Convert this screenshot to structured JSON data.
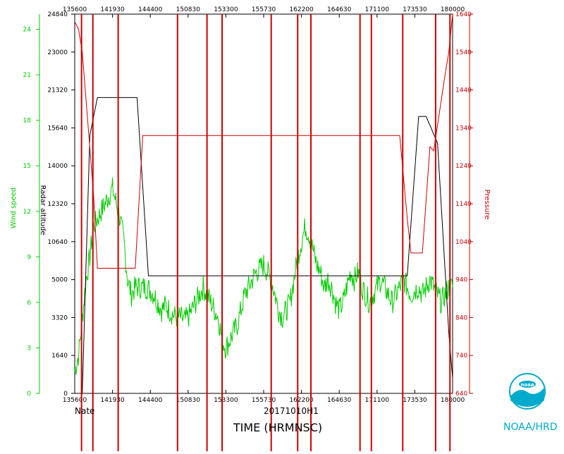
{
  "chart_data": {
    "type": "line",
    "storm_name": "Nate",
    "flight_id": "20171010H1",
    "xlabel": "TIME (HRMNSC)",
    "x_ticks_bottom": [
      "135600",
      "141930",
      "144400",
      "150830",
      "153300",
      "155730",
      "162200",
      "164630",
      "171100",
      "173530",
      "180000"
    ],
    "x_ticks_top": [
      "135600",
      "141930",
      "144400",
      "150830",
      "153300",
      "155730",
      "162200",
      "164630",
      "171100",
      "173530",
      "180000"
    ],
    "axes": {
      "wind": {
        "label": "Wind speed",
        "color": "#00cc00",
        "ticks": [
          "0",
          "3",
          "6",
          "9",
          "12",
          "15",
          "18",
          "21",
          "24"
        ],
        "range": [
          0,
          25
        ]
      },
      "altitude": {
        "label": "Radar altitude",
        "color": "#000000",
        "ticks": [
          "0",
          "1640",
          "3320",
          "5000",
          "10640",
          "12320",
          "14000",
          "15640",
          "21320",
          "23000",
          "24840"
        ]
      },
      "pressure": {
        "label": "Pressure",
        "color": "#cc0000",
        "ticks": [
          "640",
          "740",
          "840",
          "940",
          "1040",
          "1140",
          "1240",
          "1340",
          "1440",
          "1540",
          "1640"
        ]
      }
    },
    "series": [
      {
        "name": "Wind speed",
        "color": "#00cc00",
        "x": [
          0.0,
          0.01,
          0.02,
          0.03,
          0.04,
          0.05,
          0.06,
          0.07,
          0.08,
          0.09,
          0.1,
          0.11,
          0.12,
          0.13,
          0.14,
          0.15,
          0.16,
          0.17,
          0.18,
          0.19,
          0.2,
          0.21,
          0.22,
          0.23,
          0.24,
          0.25,
          0.26,
          0.27,
          0.28,
          0.29,
          0.3,
          0.31,
          0.32,
          0.33,
          0.34,
          0.35,
          0.36,
          0.37,
          0.38,
          0.39,
          0.4,
          0.41,
          0.42,
          0.43,
          0.44,
          0.45,
          0.46,
          0.47,
          0.48,
          0.49,
          0.5,
          0.51,
          0.52,
          0.53,
          0.54,
          0.55,
          0.56,
          0.57,
          0.58,
          0.59,
          0.6,
          0.61,
          0.62,
          0.63,
          0.64,
          0.65,
          0.66,
          0.67,
          0.68,
          0.69,
          0.7,
          0.71,
          0.72,
          0.73,
          0.74,
          0.75,
          0.76,
          0.77,
          0.78,
          0.79,
          0.8,
          0.81,
          0.82,
          0.83,
          0.84,
          0.85,
          0.86,
          0.87,
          0.88,
          0.89,
          0.9,
          0.91,
          0.92,
          0.93,
          0.94,
          0.95,
          0.96,
          0.97,
          0.98,
          0.99,
          1.0
        ],
        "values": [
          1.5,
          2.5,
          5.0,
          7.5,
          9.0,
          11.0,
          11.5,
          12.0,
          12.5,
          13.0,
          13.5,
          12.5,
          11.5,
          10.0,
          7.5,
          6.5,
          7.0,
          7.0,
          7.0,
          7.0,
          6.8,
          6.5,
          6.0,
          5.5,
          5.8,
          5.5,
          5.2,
          5.0,
          5.0,
          4.8,
          5.0,
          5.5,
          6.0,
          6.5,
          7.0,
          6.5,
          6.0,
          5.5,
          5.0,
          3.5,
          3.0,
          3.5,
          4.0,
          4.5,
          5.5,
          6.5,
          7.0,
          7.5,
          8.0,
          8.2,
          8.5,
          8.0,
          7.5,
          6.5,
          5.5,
          5.0,
          5.5,
          6.0,
          7.5,
          9.0,
          10.0,
          11.0,
          10.5,
          9.5,
          8.5,
          8.0,
          7.0,
          7.5,
          7.0,
          6.0,
          5.5,
          6.0,
          7.0,
          8.0,
          7.5,
          8.0,
          7.0,
          6.5,
          6.0,
          6.5,
          7.0,
          7.5,
          7.0,
          6.5,
          6.0,
          6.5,
          7.0,
          7.5,
          7.0,
          6.5,
          6.8,
          7.0,
          6.5,
          7.0,
          7.5,
          7.0,
          6.5,
          6.0,
          6.5,
          7.0,
          7.0
        ]
      },
      {
        "name": "Radar altitude",
        "color": "#000000",
        "x": [
          0.0,
          0.02,
          0.04,
          0.06,
          0.065,
          0.1,
          0.165,
          0.195,
          0.23,
          0.4,
          0.65,
          0.88,
          0.91,
          0.93,
          0.96,
          0.99,
          1.0
        ],
        "values": [
          0.0,
          0.0,
          6.8,
          7.8,
          7.8,
          7.8,
          7.8,
          3.1,
          3.1,
          3.1,
          3.1,
          3.1,
          7.3,
          7.3,
          6.6,
          1.6,
          0.4
        ]
      },
      {
        "name": "Pressure",
        "color": "#cc0000",
        "x": [
          0.0,
          0.01,
          0.02,
          0.05,
          0.06,
          0.07,
          0.16,
          0.18,
          0.19,
          0.32,
          0.6,
          0.86,
          0.88,
          0.89,
          0.92,
          0.94,
          0.95,
          0.98,
          0.99,
          1.0
        ],
        "values": [
          0.98,
          0.96,
          0.9,
          0.52,
          0.33,
          0.33,
          0.33,
          0.68,
          0.68,
          0.68,
          0.68,
          0.68,
          0.46,
          0.37,
          0.37,
          0.65,
          0.64,
          0.84,
          0.9,
          1.0
        ]
      }
    ],
    "spikes": [
      {
        "x": 0.018,
        "color": "#cc0000"
      },
      {
        "x": 0.048,
        "color": "#cc0000"
      },
      {
        "x": 0.115,
        "color": "#cc0000"
      },
      {
        "x": 0.272,
        "color": "#cc0000"
      },
      {
        "x": 0.35,
        "color": "#cc0000"
      },
      {
        "x": 0.39,
        "color": "#cc0000"
      },
      {
        "x": 0.52,
        "color": "#cc0000"
      },
      {
        "x": 0.59,
        "color": "#cc0000"
      },
      {
        "x": 0.625,
        "color": "#cc0000"
      },
      {
        "x": 0.755,
        "color": "#cc0000"
      },
      {
        "x": 0.785,
        "color": "#cc0000"
      },
      {
        "x": 0.868,
        "color": "#cc0000"
      },
      {
        "x": 0.955,
        "color": "#cc0000"
      },
      {
        "x": 0.993,
        "color": "#cc0000"
      }
    ],
    "logo_text": "NOAA/HRD",
    "logo_badge": "noaa"
  }
}
